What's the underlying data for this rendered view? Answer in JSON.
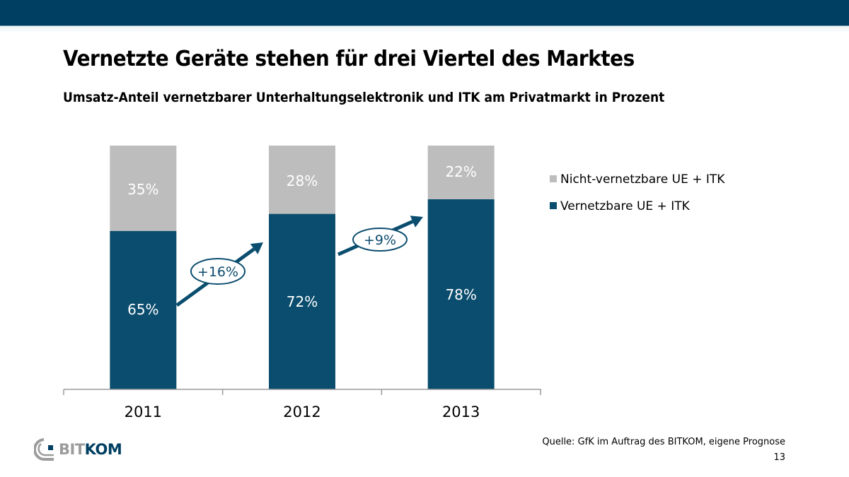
{
  "header": {
    "title": "Vernetzte Geräte stehen für drei Viertel des Marktes",
    "subtitle": "Umsatz-Anteil vernetzbarer Unterhaltungselektronik und ITK  am Privatmarkt in Prozent"
  },
  "colors": {
    "brand": "#003f62",
    "networked": "#0a4d6e",
    "non_networked": "#bdbdbd",
    "growth": "#0c4a6e"
  },
  "chart_data": {
    "type": "bar",
    "stacked": true,
    "title": "Vernetzte Geräte stehen für drei Viertel des Marktes",
    "subtitle": "Umsatz-Anteil vernetzbarer Unterhaltungselektronik und ITK  am Privatmarkt in Prozent",
    "xlabel": "",
    "ylabel": "",
    "ylim": [
      0,
      100
    ],
    "grid": false,
    "categories": [
      "2011",
      "2012",
      "2013"
    ],
    "series": [
      {
        "name": "Vernetzbare UE + ITK",
        "values": [
          65,
          72,
          78
        ],
        "labels": [
          "65%",
          "72%",
          "78%"
        ],
        "color": "#0a4d6e"
      },
      {
        "name": "Nicht-vernetzbare UE + ITK",
        "values": [
          35,
          28,
          22
        ],
        "labels": [
          "35%",
          "28%",
          "22%"
        ],
        "color": "#bdbdbd"
      }
    ],
    "legend": {
      "placement": "right",
      "entries": [
        "Nicht-vernetzbare UE + ITK",
        "Vernetzbare UE + ITK"
      ]
    },
    "annotations": [
      {
        "from": "2011",
        "to": "2012",
        "text": "+16%"
      },
      {
        "from": "2012",
        "to": "2013",
        "text": "+9%"
      }
    ]
  },
  "footer": {
    "logo_part1": "BIT",
    "logo_part2": "KOM",
    "source": "Quelle: GfK im Auftrag des BITKOM, eigene Prognose",
    "page_number": "13"
  }
}
